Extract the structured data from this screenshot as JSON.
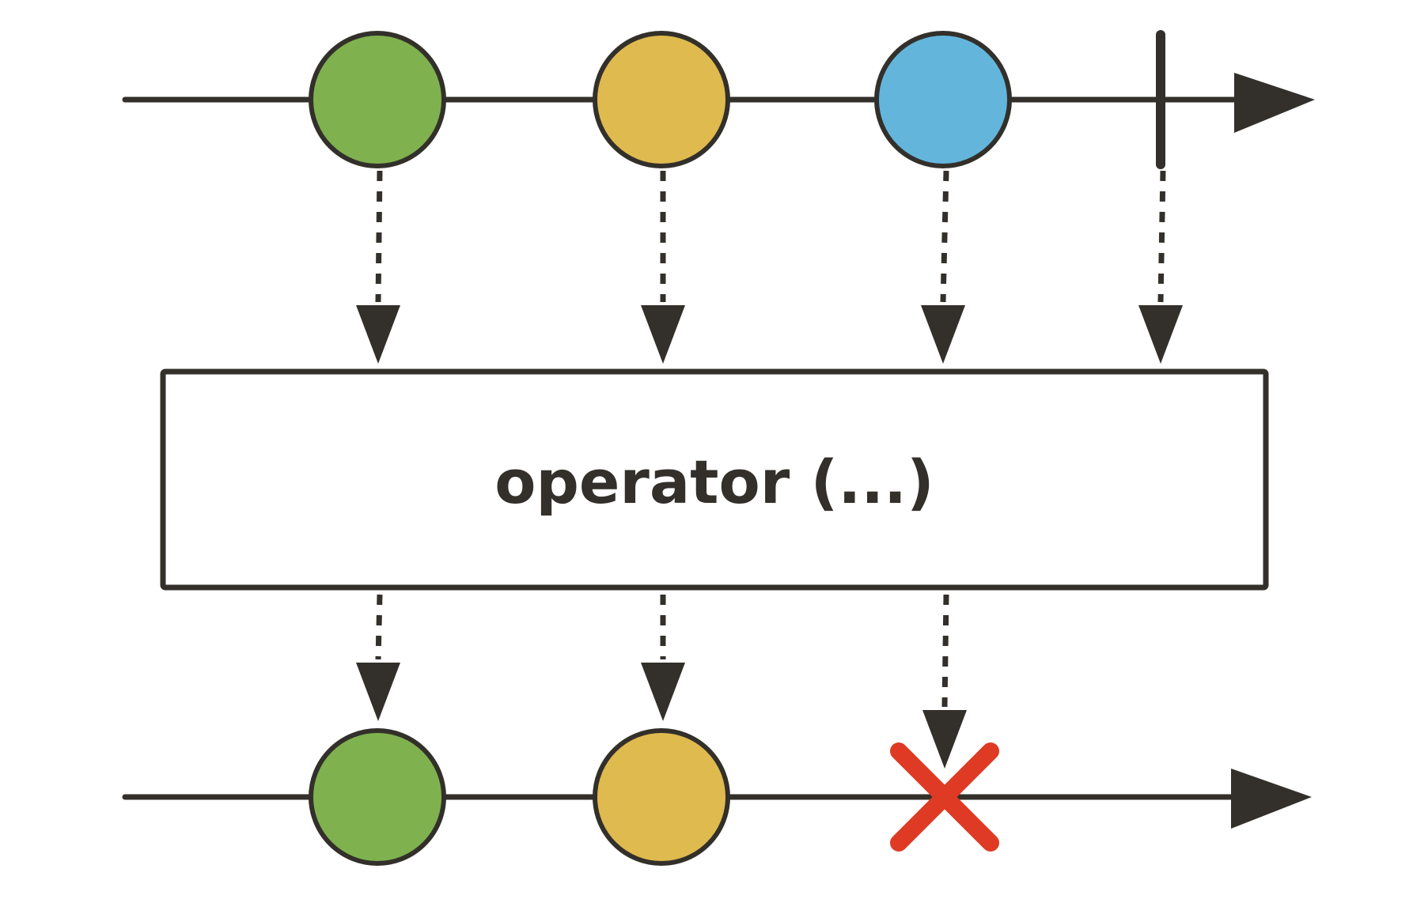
{
  "colors": {
    "ink": "#33302b",
    "green": "#7fb24f",
    "yellow": "#dfba4e",
    "blue": "#64b5dc",
    "error": "#de3a24",
    "box_fill": "#ffffff"
  },
  "operator": {
    "label": "operator (...)"
  },
  "input_stream": {
    "items": [
      {
        "kind": "item",
        "color": "green"
      },
      {
        "kind": "item",
        "color": "yellow"
      },
      {
        "kind": "item",
        "color": "blue"
      },
      {
        "kind": "completion"
      }
    ]
  },
  "output_stream": {
    "items": [
      {
        "kind": "item",
        "color": "green"
      },
      {
        "kind": "item",
        "color": "yellow"
      },
      {
        "kind": "error",
        "icon": "x-icon"
      }
    ]
  }
}
